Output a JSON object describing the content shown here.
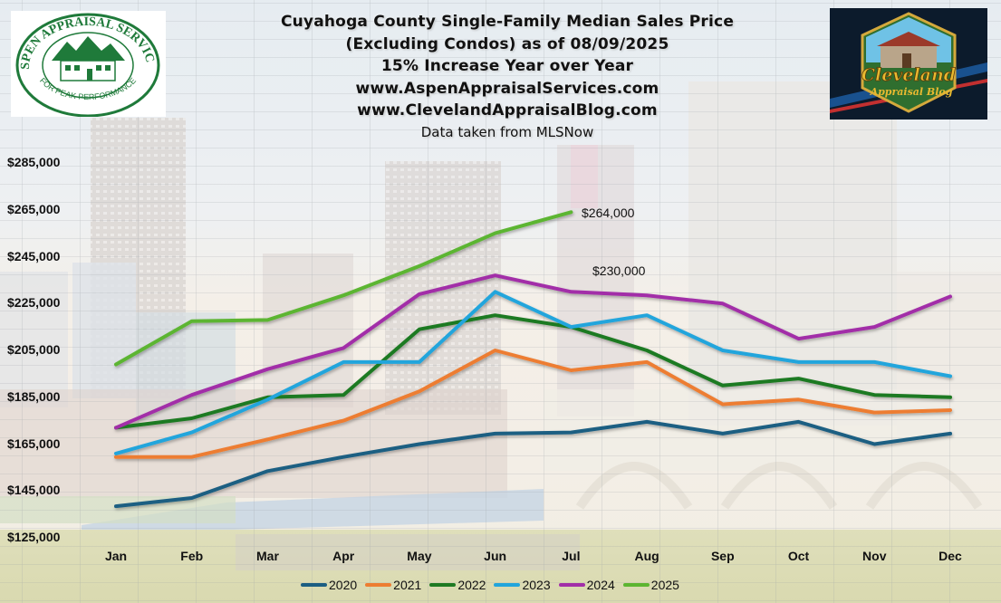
{
  "header": {
    "title_lines": [
      "Cuyahoga County Single-Family Median Sales Price",
      "(Excluding Condos) as of 08/09/2025",
      "15% Increase Year over Year",
      "www.AspenAppraisalServices.com",
      "www.ClevelandAppraisalBlog.com"
    ],
    "source_note": "Data taken from MLSNow"
  },
  "logos": {
    "left": {
      "arc_text": "ASPEN APPRAISAL SERVICES",
      "bottom_text": "FOR PEAK PERFORMANCE",
      "color": "#1f7a3a"
    },
    "right": {
      "line1": "Cleveland",
      "line2": "Appraisal Blog"
    }
  },
  "annotations": [
    {
      "text": "$264,000",
      "series": "2025",
      "month": "Jul"
    },
    {
      "text": "$230,000",
      "series": "2024",
      "month": "Jul"
    }
  ],
  "chart_data": {
    "type": "line",
    "title": "Cuyahoga County Single-Family Median Sales Price (Excluding Condos) as of 08/09/2025",
    "subtitle": "15% Increase Year over Year",
    "xlabel": "",
    "ylabel": "",
    "categories": [
      "Jan",
      "Feb",
      "Mar",
      "Apr",
      "May",
      "Jun",
      "Jul",
      "Aug",
      "Sep",
      "Oct",
      "Nov",
      "Dec"
    ],
    "y_ticks": [
      "$125,000",
      "$145,000",
      "$165,000",
      "$185,000",
      "$205,000",
      "$225,000",
      "$245,000",
      "$265,000",
      "$285,000"
    ],
    "ylim": [
      125000,
      285000
    ],
    "grid": true,
    "legend_position": "bottom",
    "series": [
      {
        "name": "2020",
        "color": "#1b5e82",
        "values": [
          138500,
          142000,
          153500,
          159500,
          165000,
          169500,
          170000,
          174500,
          169500,
          174500,
          165000,
          169500
        ]
      },
      {
        "name": "2021",
        "color": "#ed7d31",
        "values": [
          159500,
          159500,
          167000,
          175000,
          187500,
          205000,
          196500,
          200000,
          182000,
          184000,
          178500,
          179500
        ]
      },
      {
        "name": "2022",
        "color": "#1e7a22",
        "values": [
          172000,
          176000,
          185000,
          186000,
          214000,
          220000,
          215000,
          205000,
          190000,
          193000,
          186000,
          185000
        ]
      },
      {
        "name": "2023",
        "color": "#21a5dc",
        "values": [
          161000,
          170000,
          184000,
          200000,
          200000,
          230000,
          215000,
          220000,
          205000,
          200000,
          200000,
          194000
        ]
      },
      {
        "name": "2024",
        "color": "#a22ea8",
        "values": [
          172000,
          186000,
          197000,
          206000,
          229000,
          237000,
          230000,
          228500,
          225000,
          210000,
          215000,
          228000
        ]
      },
      {
        "name": "2025",
        "color": "#5cb531",
        "values": [
          199000,
          217500,
          218000,
          228500,
          241000,
          255000,
          264000,
          null,
          null,
          null,
          null,
          null
        ]
      }
    ]
  }
}
